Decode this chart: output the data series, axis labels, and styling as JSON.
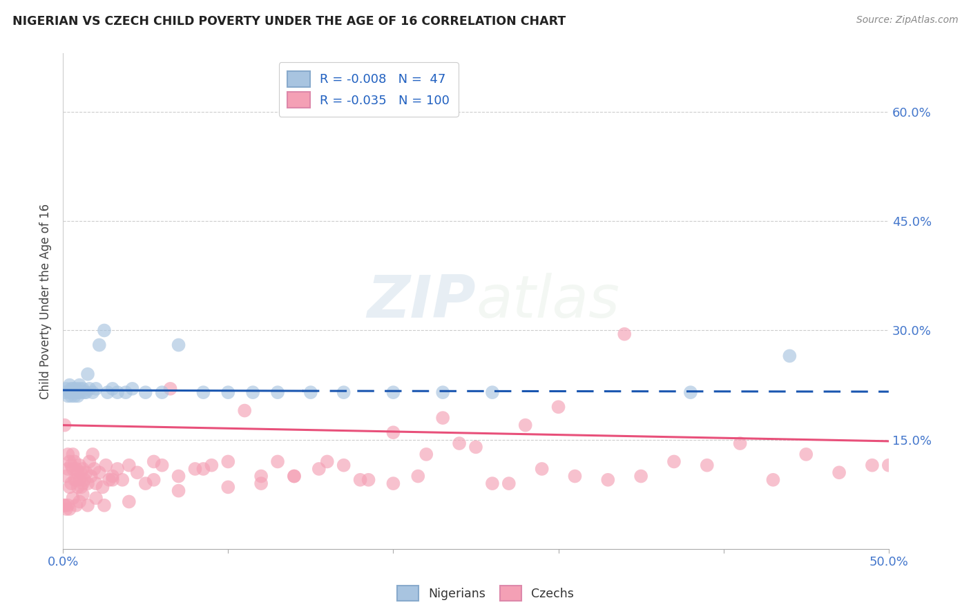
{
  "title": "NIGERIAN VS CZECH CHILD POVERTY UNDER THE AGE OF 16 CORRELATION CHART",
  "source": "Source: ZipAtlas.com",
  "ylabel": "Child Poverty Under the Age of 16",
  "ytick_labels": [
    "60.0%",
    "45.0%",
    "30.0%",
    "15.0%"
  ],
  "ytick_values": [
    0.6,
    0.45,
    0.3,
    0.15
  ],
  "xmin": 0.0,
  "xmax": 0.5,
  "ymin": 0.0,
  "ymax": 0.68,
  "nigerians_R": -0.008,
  "nigerians_N": 47,
  "czechs_R": -0.035,
  "czechs_N": 100,
  "nigerian_color": "#a8c4e0",
  "czech_color": "#f4a0b5",
  "nigerian_line_color": "#1a56b0",
  "czech_line_color": "#e8507a",
  "legend_text_color": "#2060c0",
  "background_color": "#ffffff",
  "nigerians_x": [
    0.001,
    0.002,
    0.003,
    0.004,
    0.004,
    0.005,
    0.005,
    0.005,
    0.006,
    0.006,
    0.007,
    0.007,
    0.008,
    0.008,
    0.009,
    0.009,
    0.01,
    0.01,
    0.011,
    0.012,
    0.013,
    0.014,
    0.015,
    0.016,
    0.018,
    0.02,
    0.022,
    0.025,
    0.027,
    0.03,
    0.033,
    0.038,
    0.042,
    0.05,
    0.06,
    0.07,
    0.085,
    0.1,
    0.115,
    0.13,
    0.15,
    0.17,
    0.2,
    0.23,
    0.26,
    0.38,
    0.44
  ],
  "nigerians_y": [
    0.215,
    0.22,
    0.21,
    0.225,
    0.215,
    0.22,
    0.215,
    0.21,
    0.22,
    0.215,
    0.215,
    0.21,
    0.22,
    0.215,
    0.215,
    0.21,
    0.225,
    0.22,
    0.215,
    0.22,
    0.215,
    0.215,
    0.24,
    0.22,
    0.215,
    0.22,
    0.28,
    0.3,
    0.215,
    0.22,
    0.215,
    0.215,
    0.22,
    0.215,
    0.215,
    0.28,
    0.215,
    0.215,
    0.215,
    0.215,
    0.215,
    0.215,
    0.215,
    0.215,
    0.215,
    0.215,
    0.265
  ],
  "czechs_x": [
    0.001,
    0.002,
    0.003,
    0.003,
    0.004,
    0.004,
    0.005,
    0.005,
    0.006,
    0.006,
    0.007,
    0.007,
    0.008,
    0.008,
    0.009,
    0.009,
    0.01,
    0.01,
    0.011,
    0.011,
    0.012,
    0.012,
    0.013,
    0.014,
    0.015,
    0.016,
    0.017,
    0.018,
    0.019,
    0.02,
    0.022,
    0.024,
    0.026,
    0.028,
    0.03,
    0.033,
    0.036,
    0.04,
    0.045,
    0.05,
    0.055,
    0.06,
    0.065,
    0.07,
    0.08,
    0.09,
    0.1,
    0.11,
    0.12,
    0.13,
    0.14,
    0.155,
    0.17,
    0.185,
    0.2,
    0.215,
    0.23,
    0.25,
    0.27,
    0.29,
    0.31,
    0.33,
    0.35,
    0.37,
    0.39,
    0.41,
    0.43,
    0.45,
    0.47,
    0.49,
    0.5,
    0.34,
    0.3,
    0.28,
    0.26,
    0.24,
    0.22,
    0.2,
    0.18,
    0.16,
    0.14,
    0.12,
    0.1,
    0.085,
    0.07,
    0.055,
    0.04,
    0.03,
    0.025,
    0.02,
    0.015,
    0.012,
    0.01,
    0.008,
    0.006,
    0.004,
    0.003,
    0.002,
    0.001,
    0.001
  ],
  "czechs_y": [
    0.17,
    0.1,
    0.13,
    0.11,
    0.12,
    0.085,
    0.115,
    0.09,
    0.13,
    0.11,
    0.095,
    0.12,
    0.11,
    0.095,
    0.105,
    0.085,
    0.115,
    0.095,
    0.105,
    0.085,
    0.11,
    0.09,
    0.095,
    0.105,
    0.09,
    0.12,
    0.1,
    0.13,
    0.11,
    0.09,
    0.105,
    0.085,
    0.115,
    0.095,
    0.1,
    0.11,
    0.095,
    0.115,
    0.105,
    0.09,
    0.12,
    0.115,
    0.22,
    0.1,
    0.11,
    0.115,
    0.12,
    0.19,
    0.1,
    0.12,
    0.1,
    0.11,
    0.115,
    0.095,
    0.16,
    0.1,
    0.18,
    0.14,
    0.09,
    0.11,
    0.1,
    0.095,
    0.1,
    0.12,
    0.115,
    0.145,
    0.095,
    0.13,
    0.105,
    0.115,
    0.115,
    0.295,
    0.195,
    0.17,
    0.09,
    0.145,
    0.13,
    0.09,
    0.095,
    0.12,
    0.1,
    0.09,
    0.085,
    0.11,
    0.08,
    0.095,
    0.065,
    0.095,
    0.06,
    0.07,
    0.06,
    0.075,
    0.065,
    0.06,
    0.07,
    0.055,
    0.06,
    0.055,
    0.06,
    0.06
  ]
}
